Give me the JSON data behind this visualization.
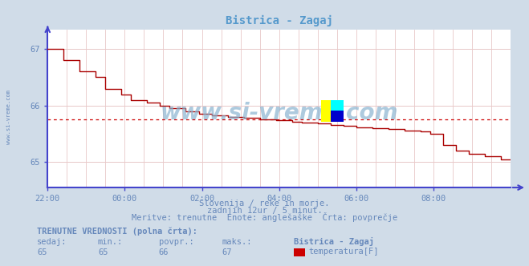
{
  "title": "Bistrica - Zagaj",
  "bg_color": "#d0dce8",
  "plot_bg_color": "#ffffff",
  "grid_color_major": "#e8c8c8",
  "grid_color_minor": "#f0dede",
  "line_color": "#aa0000",
  "avg_line_color": "#cc0000",
  "axis_color": "#4444cc",
  "text_color": "#6688bb",
  "title_color": "#5599cc",
  "ylabel_values": [
    65,
    66,
    67
  ],
  "ylim": [
    64.55,
    67.35
  ],
  "xlim_min": 0,
  "xlim_max": 144,
  "xtick_positions": [
    0,
    24,
    48,
    72,
    96,
    120,
    144
  ],
  "xtick_labels": [
    "22:00",
    "00:00",
    "02:00",
    "04:00",
    "06:00",
    "08:00",
    ""
  ],
  "avg_value": 65.75,
  "subtitle1": "Slovenija / reke in morje.",
  "subtitle2": "zadnjih 12ur / 5 minut.",
  "subtitle3": "Meritve: trenutne  Enote: anglešaške  Črta: povprečje",
  "footer_bold": "TRENUTNE VREDNOSTI (polna črta):",
  "legend_label": "temperatura[F]",
  "legend_color": "#cc0000",
  "watermark": "www.si-vreme.com",
  "data_x": [
    0,
    4,
    5,
    9,
    10,
    14,
    15,
    17,
    18,
    22,
    23,
    25,
    26,
    30,
    31,
    34,
    35,
    37,
    38,
    42,
    43,
    46,
    47,
    50,
    51,
    55,
    56,
    60,
    61,
    65,
    66,
    70,
    71,
    75,
    76,
    78,
    79,
    83,
    84,
    87,
    88,
    91,
    92,
    95,
    96,
    100,
    101,
    105,
    106,
    110,
    111,
    115,
    116,
    118,
    119,
    122,
    123,
    126,
    127,
    130,
    131,
    135,
    136,
    140,
    141,
    144
  ],
  "data_y": [
    67.0,
    67.0,
    66.8,
    66.8,
    66.6,
    66.6,
    66.5,
    66.5,
    66.3,
    66.3,
    66.2,
    66.2,
    66.1,
    66.1,
    66.05,
    66.05,
    66.0,
    66.0,
    65.95,
    65.95,
    65.9,
    65.9,
    65.85,
    65.85,
    65.82,
    65.82,
    65.8,
    65.8,
    65.78,
    65.78,
    65.76,
    65.76,
    65.74,
    65.74,
    65.72,
    65.72,
    65.7,
    65.7,
    65.68,
    65.68,
    65.66,
    65.66,
    65.64,
    65.64,
    65.62,
    65.62,
    65.6,
    65.6,
    65.58,
    65.58,
    65.56,
    65.56,
    65.54,
    65.54,
    65.5,
    65.5,
    65.3,
    65.3,
    65.2,
    65.2,
    65.15,
    65.15,
    65.1,
    65.1,
    65.05,
    65.05
  ],
  "sedaj": "65",
  "min_val": "65",
  "povpr": "66",
  "maks": "67"
}
